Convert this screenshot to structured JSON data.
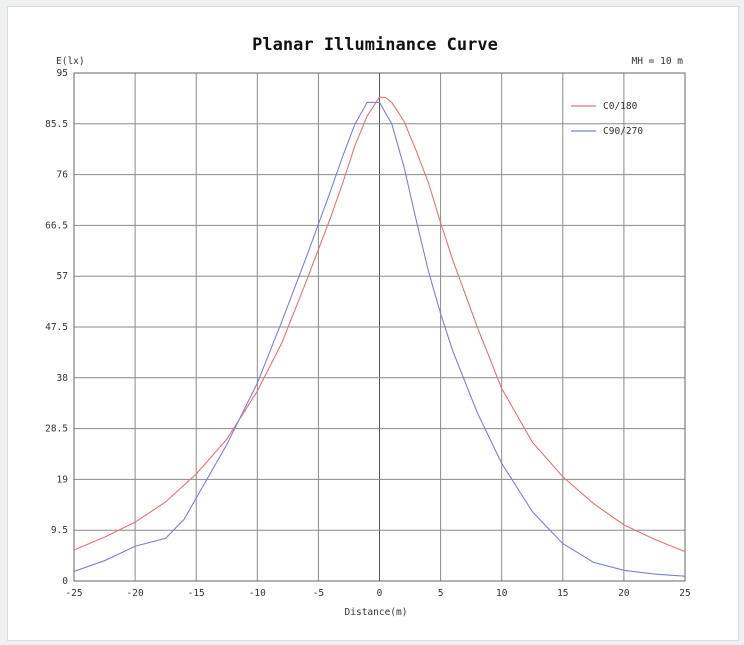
{
  "chart_data": {
    "type": "line",
    "title": "Planar Illuminance Curve",
    "annotation": "MH = 10 m",
    "xlabel": "Distance(m)",
    "ylabel": "E(lx)",
    "xlim": [
      -25,
      25
    ],
    "ylim": [
      0,
      95
    ],
    "x_ticks": [
      "-25",
      "-20",
      "-15",
      "-10",
      "-5",
      "0",
      "5",
      "10",
      "15",
      "20",
      "25"
    ],
    "y_ticks": [
      "0",
      "9.5",
      "19",
      "28.5",
      "38",
      "47.5",
      "57",
      "66.5",
      "76",
      "85.5",
      "95"
    ],
    "grid": true,
    "legend_position": "top-right",
    "series": [
      {
        "name": "C0/180",
        "color": "#e57373",
        "points": [
          [
            -25,
            5.8
          ],
          [
            -22.5,
            8.2
          ],
          [
            -20,
            11.0
          ],
          [
            -17.5,
            14.8
          ],
          [
            -15,
            20.0
          ],
          [
            -12.5,
            26.5
          ],
          [
            -10,
            35.5
          ],
          [
            -8,
            44.5
          ],
          [
            -6,
            56.0
          ],
          [
            -4,
            68.0
          ],
          [
            -3,
            74.5
          ],
          [
            -2,
            81.5
          ],
          [
            -1,
            87.0
          ],
          [
            0,
            90.5
          ],
          [
            0.5,
            90.4
          ],
          [
            1,
            89.5
          ],
          [
            2,
            86.0
          ],
          [
            3,
            80.5
          ],
          [
            4,
            74.5
          ],
          [
            5,
            67.0
          ],
          [
            6,
            60.0
          ],
          [
            8,
            47.5
          ],
          [
            10,
            36.0
          ],
          [
            12.5,
            26.0
          ],
          [
            15,
            19.5
          ],
          [
            17.5,
            14.5
          ],
          [
            20,
            10.5
          ],
          [
            22.5,
            7.8
          ],
          [
            25,
            5.5
          ]
        ]
      },
      {
        "name": "C90/270",
        "color": "#7b7fd8",
        "points": [
          [
            -25,
            1.8
          ],
          [
            -22.5,
            3.8
          ],
          [
            -20,
            6.5
          ],
          [
            -17.5,
            8.0
          ],
          [
            -16,
            11.5
          ],
          [
            -15,
            15.5
          ],
          [
            -12.5,
            25.5
          ],
          [
            -10,
            37.0
          ],
          [
            -8,
            48.5
          ],
          [
            -6,
            60.5
          ],
          [
            -4,
            73.0
          ],
          [
            -3,
            79.5
          ],
          [
            -2,
            85.5
          ],
          [
            -1,
            89.5
          ],
          [
            0,
            89.5
          ],
          [
            1,
            85.5
          ],
          [
            2,
            77.5
          ],
          [
            3,
            67.5
          ],
          [
            4,
            58.0
          ],
          [
            5,
            50.0
          ],
          [
            6,
            43.0
          ],
          [
            8,
            31.5
          ],
          [
            10,
            22.0
          ],
          [
            12.5,
            13.0
          ],
          [
            15,
            7.0
          ],
          [
            17.5,
            3.5
          ],
          [
            20,
            2.0
          ],
          [
            22.5,
            1.3
          ],
          [
            25,
            0.9
          ]
        ]
      }
    ]
  }
}
